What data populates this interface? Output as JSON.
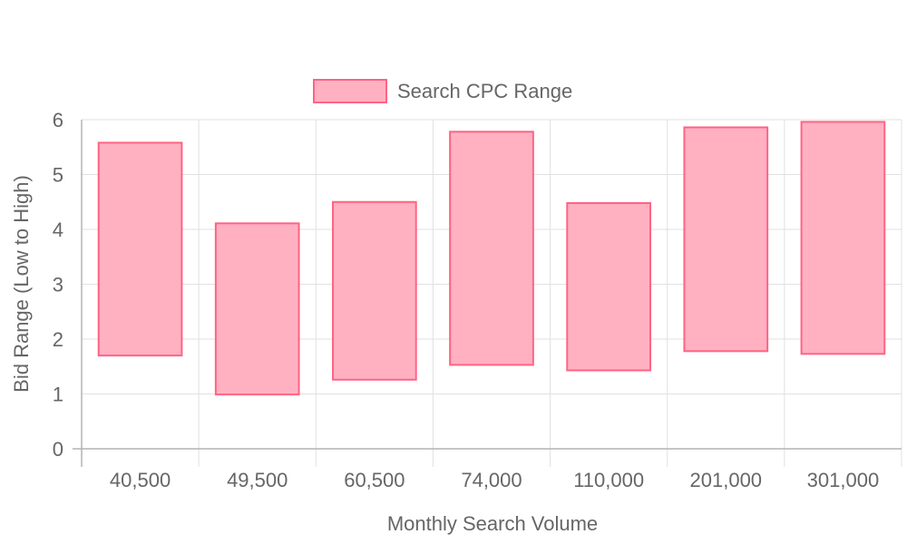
{
  "chart_data": {
    "type": "bar",
    "subtype": "floating-range",
    "xlabel": "Monthly Search Volume",
    "ylabel": "Bid Range (Low to High)",
    "ylim": [
      0,
      6
    ],
    "yticks": [
      0,
      1,
      2,
      3,
      4,
      5,
      6
    ],
    "grid": true,
    "legend": "top-center",
    "categories": [
      "40,500",
      "49,500",
      "60,500",
      "74,000",
      "110,000",
      "201,000",
      "301,000"
    ],
    "series": [
      {
        "name": "Search CPC Range",
        "fill": "#ffb1c1",
        "stroke": "#ff6384",
        "ranges": [
          [
            1.7,
            5.58
          ],
          [
            0.99,
            4.11
          ],
          [
            1.26,
            4.5
          ],
          [
            1.53,
            5.78
          ],
          [
            1.43,
            4.48
          ],
          [
            1.78,
            5.86
          ],
          [
            1.73,
            5.96
          ]
        ]
      }
    ]
  }
}
